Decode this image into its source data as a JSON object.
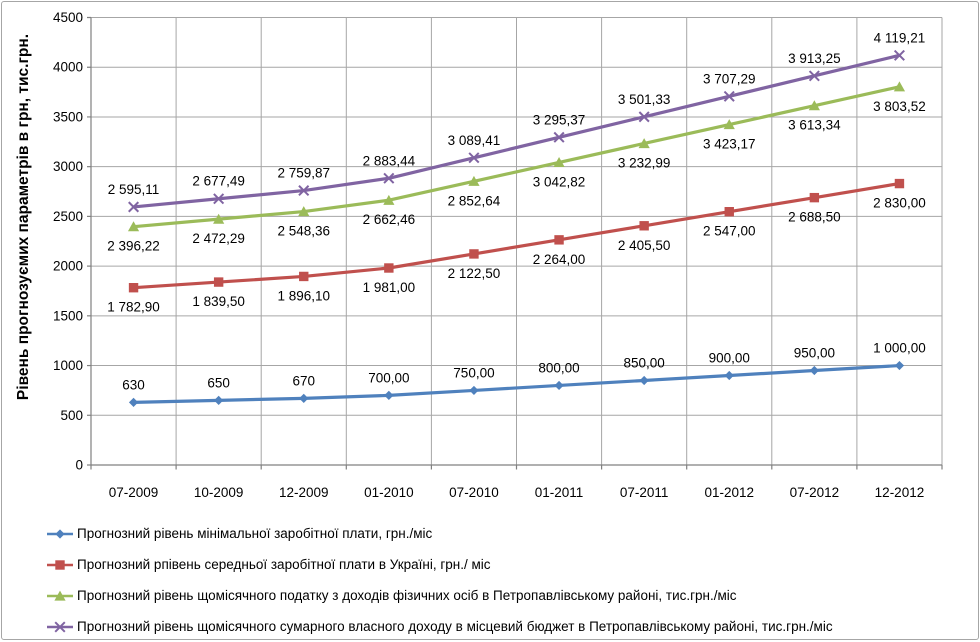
{
  "chart_data": {
    "type": "line",
    "title": "",
    "xlabel": "",
    "ylabel": "Рівень прогнозуємих параметрів  в грн, тис.грн.",
    "ylim": [
      0,
      4500
    ],
    "ytick_step": 500,
    "y_ticks": [
      0,
      500,
      1000,
      1500,
      2000,
      2500,
      3000,
      3500,
      4000,
      4500
    ],
    "grid": true,
    "legend_position": "bottom",
    "categories": [
      "07-2009",
      "10-2009",
      "12-2009",
      "01-2010",
      "07-2010",
      "01-2011",
      "07-2011",
      "01-2012",
      "07-2012",
      "12-2012"
    ],
    "series": [
      {
        "name": "Прогнозний рівень мінімальної заробітної плати, грн./міс",
        "color": "#4F81BD",
        "marker": "diamond",
        "label_position": "above",
        "values": [
          630,
          650,
          670,
          700,
          750,
          800,
          850,
          900,
          950,
          1000
        ],
        "labels": [
          "630",
          "650",
          "670",
          "700,00",
          "750,00",
          "800,00",
          "850,00",
          "900,00",
          "950,00",
          "1 000,00"
        ]
      },
      {
        "name": "Прогнозний рпівень середньої заробітної плати в Україні, грн./ міс",
        "color": "#C0504D",
        "marker": "square",
        "label_position": "below",
        "values": [
          1782.9,
          1839.5,
          1896.1,
          1981.0,
          2122.5,
          2264.0,
          2405.5,
          2547.0,
          2688.5,
          2830.0
        ],
        "labels": [
          "1 782,90",
          "1 839,50",
          "1 896,10",
          "1 981,00",
          "2 122,50",
          "2 264,00",
          "2 405,50",
          "2 547,00",
          "2 688,50",
          "2 830,00"
        ]
      },
      {
        "name": "Прогнозний рівень щомісячного податку з доходів фізичних осіб в Петропавлівському районі, тис.грн./міс",
        "color": "#9BBB59",
        "marker": "triangle",
        "label_position": "below",
        "values": [
          2396.22,
          2472.29,
          2548.36,
          2662.46,
          2852.64,
          3042.82,
          3232.99,
          3423.17,
          3613.34,
          3803.52
        ],
        "labels": [
          "2 396,22",
          "2 472,29",
          "2 548,36",
          "2 662,46",
          "2 852,64",
          "3 042,82",
          "3 232,99",
          "3 423,17",
          "3 613,34",
          "3 803,52"
        ]
      },
      {
        "name": "Прогнозний рівень щомісячного сумарного власного доходу в місцевий бюджет в Петропавлівському районі, тис.грн./міс",
        "color": "#8064A2",
        "marker": "x",
        "label_position": "above",
        "values": [
          2595.11,
          2677.49,
          2759.87,
          2883.44,
          3089.41,
          3295.37,
          3501.33,
          3707.29,
          3913.25,
          4119.21
        ],
        "labels": [
          "2 595,11",
          "2 677,49",
          "2 759,87",
          "2 883,44",
          "3 089,41",
          "3 295,37",
          "3 501,33",
          "3 707,29",
          "3 913,25",
          "4 119,21"
        ]
      }
    ],
    "colors": {
      "gridline": "#A6A6A6",
      "axis": "#808080",
      "text": "#000000",
      "background": "#FFFFFF"
    }
  }
}
